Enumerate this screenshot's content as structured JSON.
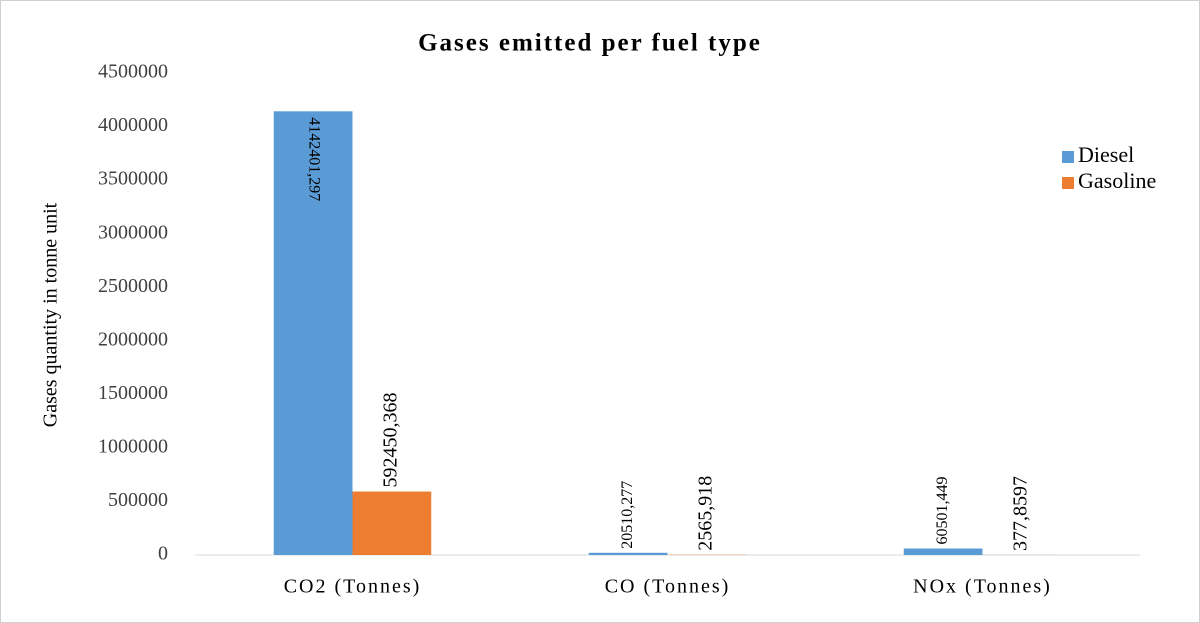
{
  "chart_data": {
    "type": "bar",
    "title": "Gases emitted per fuel type",
    "y_label": "Gases quantity in tonne unit",
    "categories": [
      "CO2 (Tonnes)",
      "CO (Tonnes)",
      "NOx (Tonnes)"
    ],
    "series": [
      {
        "name": "Diesel",
        "color": "#5b9bd5",
        "values": [
          4142401.297,
          20510.277,
          60501.449
        ],
        "value_labels": [
          "4142401,297",
          "20510,277",
          "60501,449"
        ]
      },
      {
        "name": "Gasoline",
        "color": "#ed7d31",
        "values": [
          592450.368,
          2565.918,
          377.8597
        ],
        "value_labels": [
          "592450,368",
          "2565,918",
          "377,8597"
        ]
      }
    ],
    "ylim": [
      0,
      4500000
    ],
    "yticks": [
      0,
      500000,
      1000000,
      1500000,
      2000000,
      2500000,
      3000000,
      3500000,
      4000000,
      4500000
    ],
    "grid": false,
    "legend": "upper right"
  }
}
